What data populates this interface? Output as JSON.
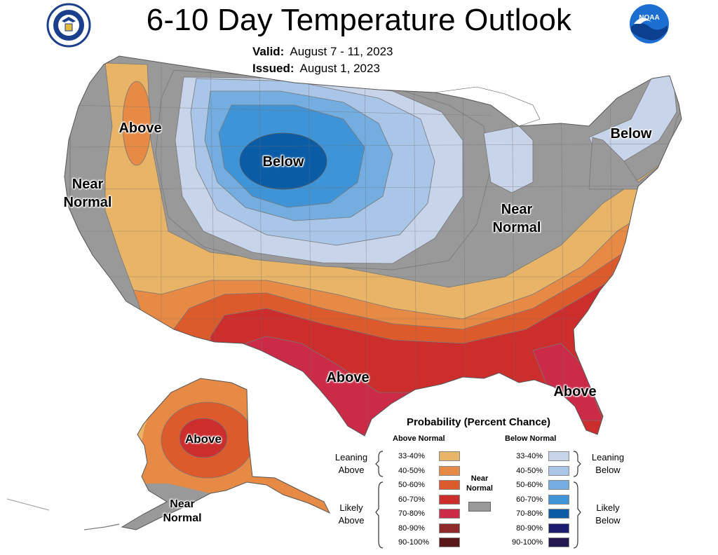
{
  "header": {
    "title": "6-10 Day Temperature Outlook",
    "valid_label": "Valid:",
    "valid_value": "August 7 - 11, 2023",
    "issued_label": "Issued:",
    "issued_value": "August 1, 2023"
  },
  "logos": {
    "left": "dept-of-commerce-seal",
    "right": "noaa-logo",
    "right_text": "NOAA"
  },
  "map_labels": {
    "above_nw": "Above",
    "near_normal_west_1": "Near",
    "near_normal_west_2": "Normal",
    "below_north": "Below",
    "below_ne": "Below",
    "near_normal_east_1": "Near",
    "near_normal_east_2": "Normal",
    "above_south": "Above",
    "above_florida": "Above",
    "above_alaska": "Above",
    "near_normal_ak_1": "Near",
    "near_normal_ak_2": "Normal"
  },
  "legend": {
    "title": "Probability (Percent Chance)",
    "above_header": "Above Normal",
    "below_header": "Below Normal",
    "near_header_1": "Near",
    "near_header_2": "Normal",
    "near_color": "#999999",
    "leaning_above_1": "Leaning",
    "leaning_above_2": "Above",
    "likely_above_1": "Likely",
    "likely_above_2": "Above",
    "leaning_below_1": "Leaning",
    "leaning_below_2": "Below",
    "likely_below_1": "Likely",
    "likely_below_2": "Below",
    "above": [
      {
        "range": "33-40%",
        "color": "#e8b467"
      },
      {
        "range": "40-50%",
        "color": "#e68a45"
      },
      {
        "range": "50-60%",
        "color": "#dc5a2c"
      },
      {
        "range": "60-70%",
        "color": "#cc2d2d"
      },
      {
        "range": "70-80%",
        "color": "#cc2b48"
      },
      {
        "range": "80-90%",
        "color": "#8e2a2a"
      },
      {
        "range": "90-100%",
        "color": "#5a1717"
      }
    ],
    "below": [
      {
        "range": "33-40%",
        "color": "#c8d4ea"
      },
      {
        "range": "40-50%",
        "color": "#a9c6e8"
      },
      {
        "range": "50-60%",
        "color": "#74ade0"
      },
      {
        "range": "60-70%",
        "color": "#3e94d6"
      },
      {
        "range": "70-80%",
        "color": "#0b5ca6"
      },
      {
        "range": "80-90%",
        "color": "#1d1d70"
      },
      {
        "range": "90-100%",
        "color": "#23174f"
      }
    ]
  }
}
